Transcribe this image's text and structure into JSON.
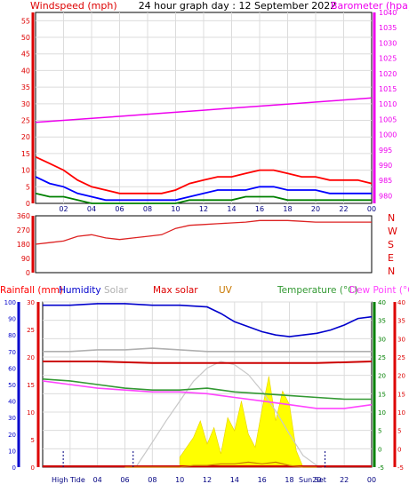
{
  "header": {
    "left_label": "Windspeed (mph)",
    "title": "24 hour graph day : 12 September 2022",
    "right_label": "Barometer (hpa)"
  },
  "colors": {
    "wind_gust": "#ff0000",
    "wind_avg": "#0000ff",
    "wind_min": "#008000",
    "barometer": "#ee00ee",
    "direction": "#dd2222",
    "humidity": "#0000cc",
    "solar": "#b0b0b0",
    "max_solar": "#c8c8c8",
    "uv": "#c87800",
    "temperature": "#339933",
    "dew_point": "#ff44ff",
    "rainfall": "#0000cc",
    "sun_fill": "#ffff00"
  },
  "hour_labels": [
    "02",
    "04",
    "06",
    "08",
    "10",
    "12",
    "14",
    "16",
    "18",
    "20",
    "22",
    "00"
  ],
  "chart_data": [
    {
      "type": "line",
      "name": "wind-barometer",
      "left_axis": {
        "title": "Windspeed (mph)",
        "range": [
          0,
          57.5
        ],
        "ticks": [
          0,
          5,
          10,
          15,
          20,
          25,
          30,
          35,
          40,
          45,
          50,
          55
        ]
      },
      "right_axis": {
        "title": "Barometer (hpa)",
        "range": [
          977.5,
          1040
        ],
        "ticks": [
          980,
          985,
          990,
          995,
          1000,
          1005,
          1010,
          1015,
          1020,
          1025,
          1030,
          1035,
          1040
        ]
      },
      "grid": true,
      "series": [
        {
          "axis": "right",
          "x": [
            0,
            3,
            6,
            9,
            12,
            15,
            18,
            21,
            24
          ],
          "values": [
            1004,
            1005,
            1006,
            1007,
            1008,
            1009,
            1010,
            1011,
            1012
          ]
        },
        {
          "axis": "left",
          "x": [
            0,
            1,
            2,
            3,
            4,
            5,
            6,
            7,
            8,
            9,
            10,
            11,
            12,
            13,
            14,
            15,
            16,
            17,
            18,
            19,
            20,
            21,
            22,
            23,
            24
          ],
          "values": [
            14,
            12,
            10,
            7,
            5,
            4,
            3,
            3,
            3,
            3,
            4,
            6,
            7,
            8,
            8,
            9,
            10,
            10,
            9,
            8,
            8,
            7,
            7,
            7,
            6
          ]
        },
        {
          "axis": "left",
          "x": [
            0,
            1,
            2,
            3,
            4,
            5,
            6,
            7,
            8,
            9,
            10,
            11,
            12,
            13,
            14,
            15,
            16,
            17,
            18,
            19,
            20,
            21,
            22,
            23,
            24
          ],
          "values": [
            8,
            6,
            5,
            3,
            2,
            1,
            1,
            1,
            1,
            1,
            1,
            2,
            3,
            4,
            4,
            4,
            5,
            5,
            4,
            4,
            4,
            3,
            3,
            3,
            3
          ]
        },
        {
          "axis": "left",
          "x": [
            0,
            1,
            2,
            3,
            4,
            5,
            6,
            7,
            8,
            9,
            10,
            11,
            12,
            13,
            14,
            15,
            16,
            17,
            18,
            19,
            20,
            21,
            22,
            23,
            24
          ],
          "values": [
            3,
            2,
            2,
            1,
            0,
            0,
            0,
            0,
            0,
            0,
            0,
            1,
            1,
            1,
            1,
            2,
            2,
            2,
            1,
            1,
            1,
            1,
            1,
            1,
            1
          ]
        }
      ]
    },
    {
      "type": "line",
      "name": "wind-direction",
      "y_axis": {
        "range": [
          0,
          360
        ],
        "ticks": [
          0,
          90,
          180,
          270,
          360
        ]
      },
      "compass_labels": [
        "N",
        "W",
        "S",
        "E",
        "N"
      ],
      "x": [
        0,
        1,
        2,
        3,
        4,
        5,
        6,
        7,
        8,
        9,
        10,
        11,
        12,
        13,
        14,
        15,
        16,
        17,
        18,
        19,
        20,
        21,
        22,
        23,
        24
      ],
      "values": [
        180,
        190,
        200,
        230,
        240,
        220,
        210,
        220,
        230,
        240,
        280,
        300,
        305,
        310,
        315,
        320,
        330,
        330,
        330,
        325,
        320,
        320,
        320,
        320,
        320
      ]
    },
    {
      "type": "line",
      "name": "humidity-solar-temperature",
      "legend": [
        "Rainfall (mm)",
        "Humidity",
        "Solar",
        "Max solar",
        "UV",
        "Temperature (°C)",
        "Dew Point (°C)"
      ],
      "axes": {
        "rainfall": {
          "range": [
            0,
            100
          ],
          "ticks": [
            0,
            10,
            20,
            30,
            40,
            50,
            60,
            70,
            80,
            90,
            100
          ]
        },
        "humidity": {
          "range": [
            0,
            30
          ],
          "ticks": [
            0,
            5,
            10,
            15,
            20,
            25,
            30
          ]
        },
        "temperature": {
          "range": [
            -5,
            40
          ],
          "ticks": [
            -5,
            0,
            5,
            10,
            15,
            20,
            25,
            30,
            35,
            40
          ]
        },
        "dew_point": {
          "range": [
            -5,
            40
          ],
          "ticks": [
            -5,
            0,
            5,
            10,
            15,
            20,
            25,
            30,
            35,
            40
          ]
        }
      },
      "grid": true,
      "bottom_labels": {
        "high_tide": "High Tide",
        "sunset": "Sun Set"
      },
      "series": [
        {
          "key": "humidity",
          "x": [
            0,
            2,
            4,
            6,
            8,
            10,
            12,
            13,
            14,
            15,
            16,
            17,
            18,
            19,
            20,
            21,
            22,
            23,
            24
          ],
          "values": [
            98,
            98,
            99,
            99,
            98,
            98,
            97,
            93,
            88,
            85,
            82,
            80,
            79,
            80,
            81,
            83,
            86,
            90,
            91
          ]
        },
        {
          "key": "solar",
          "x": [
            0,
            2,
            4,
            6,
            8,
            10,
            12,
            14,
            16,
            18,
            20,
            22,
            24
          ],
          "values": [
            70,
            70,
            71,
            71,
            72,
            71,
            70,
            70,
            70,
            70,
            70,
            70,
            70
          ]
        },
        {
          "key": "max_solar",
          "x": [
            0,
            4,
            8,
            12,
            16,
            20,
            24
          ],
          "values": [
            64,
            64,
            63,
            63,
            63,
            63,
            64
          ]
        },
        {
          "key": "temperature",
          "x": [
            0,
            2,
            4,
            6,
            8,
            10,
            12,
            13,
            14,
            16,
            18,
            20,
            22,
            24
          ],
          "values": [
            19,
            18.5,
            17.5,
            16.5,
            16,
            16,
            16.5,
            16,
            15.5,
            15,
            14.5,
            14,
            13.5,
            13.5
          ]
        },
        {
          "key": "dew_point",
          "x": [
            0,
            2,
            4,
            6,
            8,
            10,
            12,
            13,
            14,
            16,
            18,
            20,
            22,
            24
          ],
          "values": [
            18.5,
            17.5,
            16.5,
            16,
            15.5,
            15.5,
            15,
            14.5,
            14,
            13,
            12,
            11,
            11,
            12
          ]
        },
        {
          "key": "rainfall",
          "x": [
            0,
            4,
            8,
            12,
            16,
            20,
            24
          ],
          "values": [
            0.5,
            0.5,
            0.5,
            0.5,
            0.5,
            0.5,
            0.5
          ]
        },
        {
          "key": "uv",
          "x": [
            6,
            8,
            10,
            11,
            12,
            13,
            14,
            15,
            16,
            17,
            18,
            19,
            20
          ],
          "values": [
            0,
            0,
            0,
            1,
            1,
            2,
            2,
            3,
            2,
            3,
            1,
            0,
            0
          ]
        },
        {
          "key": "max_solar_curve",
          "x": [
            6.8,
            8,
            9,
            10,
            11,
            12,
            13,
            14,
            15,
            16,
            17,
            18,
            19,
            20,
            20.5
          ],
          "values": [
            0,
            15,
            28,
            40,
            52,
            60,
            64,
            62,
            56,
            46,
            34,
            20,
            7,
            1,
            0
          ]
        },
        {
          "key": "sun_fill",
          "x": [
            10,
            10.5,
            11,
            11.5,
            12,
            12.5,
            13,
            13.5,
            14,
            14.5,
            15,
            15.5,
            16,
            16.5,
            17,
            17.5,
            18,
            18.5,
            19
          ],
          "values": [
            6,
            12,
            18,
            28,
            14,
            24,
            8,
            30,
            22,
            40,
            20,
            12,
            35,
            55,
            28,
            46,
            38,
            10,
            0
          ]
        }
      ]
    }
  ]
}
